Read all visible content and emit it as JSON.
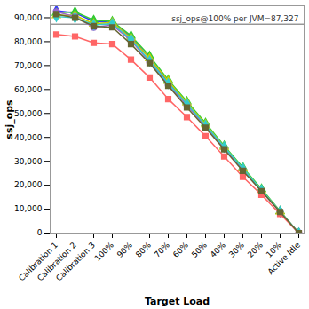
{
  "chart_data": {
    "type": "line",
    "x_label": "Target Load",
    "y_label": "ssj_ops",
    "categories": [
      "Calibration 1",
      "Calibration 2",
      "Calibration 3",
      "100%",
      "90%",
      "80%",
      "70%",
      "60%",
      "50%",
      "40%",
      "30%",
      "20%",
      "10%",
      "Active Idle"
    ],
    "ylim": [
      0,
      95000
    ],
    "yticks": [
      {
        "value": 0,
        "label": "0"
      },
      {
        "value": 10000,
        "label": "10,000"
      },
      {
        "value": 20000,
        "label": "20,000"
      },
      {
        "value": 30000,
        "label": "30,000"
      },
      {
        "value": 40000,
        "label": "40,000"
      },
      {
        "value": 50000,
        "label": "50,000"
      },
      {
        "value": 60000,
        "label": "60,000"
      },
      {
        "value": 70000,
        "label": "70,000"
      },
      {
        "value": 80000,
        "label": "80,000"
      },
      {
        "value": 90000,
        "label": "90,000"
      }
    ],
    "grid": false,
    "annotations": [
      {
        "value": 87327,
        "label": "ssj_ops@100% per JVM=87,327"
      }
    ],
    "series": [
      {
        "color": "#3333ff",
        "marker": "diamond",
        "values": [
          93000,
          92000,
          88500,
          88000,
          82000,
          73000,
          63000,
          54000,
          45000,
          36000,
          27000,
          18000,
          9000,
          0
        ]
      },
      {
        "color": "#33cc33",
        "marker": "triangle",
        "values": [
          92000,
          92500,
          89000,
          88500,
          82500,
          74000,
          64000,
          55000,
          46000,
          36500,
          27500,
          18500,
          9200,
          0
        ]
      },
      {
        "color": "#cccc00",
        "marker": "triangle",
        "values": [
          91000,
          91000,
          87500,
          88000,
          81500,
          73000,
          63500,
          54500,
          45500,
          36000,
          27000,
          18000,
          9000,
          0
        ]
      },
      {
        "color": "#9966cc",
        "marker": "circle",
        "values": [
          92500,
          90500,
          86000,
          87000,
          80500,
          71500,
          62000,
          53500,
          44500,
          35500,
          26500,
          17500,
          8800,
          0
        ]
      },
      {
        "color": "#33cccc",
        "marker": "diamond",
        "values": [
          90500,
          90000,
          87000,
          87500,
          81000,
          72000,
          62500,
          54000,
          45000,
          36000,
          27000,
          18000,
          9000,
          0
        ]
      },
      {
        "color": "#ff6666",
        "marker": "square",
        "values": [
          83000,
          82200,
          79500,
          79000,
          72500,
          65000,
          56000,
          48500,
          40500,
          32000,
          23500,
          16000,
          8000,
          0
        ]
      },
      {
        "color": "#666633",
        "marker": "square",
        "values": [
          91500,
          90000,
          86500,
          86000,
          79000,
          71000,
          61500,
          52500,
          44000,
          35000,
          26000,
          17500,
          8800,
          0
        ]
      }
    ]
  }
}
